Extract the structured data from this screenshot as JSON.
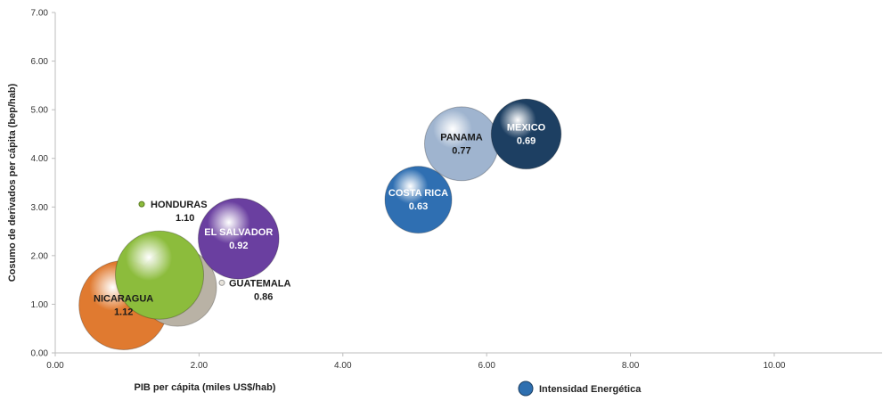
{
  "chart_data": {
    "type": "bubble",
    "xlabel": "PIB per cápita (miles US$/hab)",
    "ylabel": "Cosumo de derivados per cápita (bep/hab)",
    "xlim": [
      0,
      11.5
    ],
    "ylim": [
      0,
      7
    ],
    "x_ticks": [
      "0.00",
      "2.00",
      "4.00",
      "6.00",
      "8.00",
      "10.00"
    ],
    "y_ticks": [
      "0.00",
      "1.00",
      "2.00",
      "3.00",
      "4.00",
      "5.00",
      "6.00",
      "7.00"
    ],
    "grid": false,
    "legend": {
      "position": "bottom",
      "label": "Intensidad Energética",
      "color": "#2e6fb0"
    },
    "points": [
      {
        "name": "NICARAGUA",
        "value": "1.12",
        "x": 0.95,
        "y": 0.98,
        "size": 1.12,
        "color": "#e07a30",
        "label_color": "#1a1a1a",
        "label_pos": "inside"
      },
      {
        "name": "GUATEMALA",
        "value": "0.86",
        "x": 1.7,
        "y": 1.35,
        "size": 0.86,
        "color": "#b9b2a5",
        "label_color": "#1a1a1a",
        "label_pos": "outside-right"
      },
      {
        "name": "HONDURAS",
        "value": "1.10",
        "x": 1.45,
        "y": 1.6,
        "size": 1.1,
        "color": "#8cbc3c",
        "label_color": "#1a1a1a",
        "label_pos": "outside-upper"
      },
      {
        "name": "EL SALVADOR",
        "value": "0.92",
        "x": 2.55,
        "y": 2.35,
        "size": 0.92,
        "color": "#6a3fa0",
        "label_color": "#ffffff",
        "label_pos": "inside"
      },
      {
        "name": "COSTA RICA",
        "value": "0.63",
        "x": 5.05,
        "y": 3.15,
        "size": 0.63,
        "color": "#2f6fb2",
        "label_color": "#ffffff",
        "label_pos": "inside"
      },
      {
        "name": "PANAMA",
        "value": "0.77",
        "x": 5.65,
        "y": 4.3,
        "size": 0.77,
        "color": "#9fb4cf",
        "label_color": "#1a1a1a",
        "label_pos": "inside"
      },
      {
        "name": "MEXICO",
        "value": "0.69",
        "x": 6.55,
        "y": 4.5,
        "size": 0.69,
        "color": "#1d3f62",
        "label_color": "#ffffff",
        "label_pos": "inside"
      }
    ]
  }
}
